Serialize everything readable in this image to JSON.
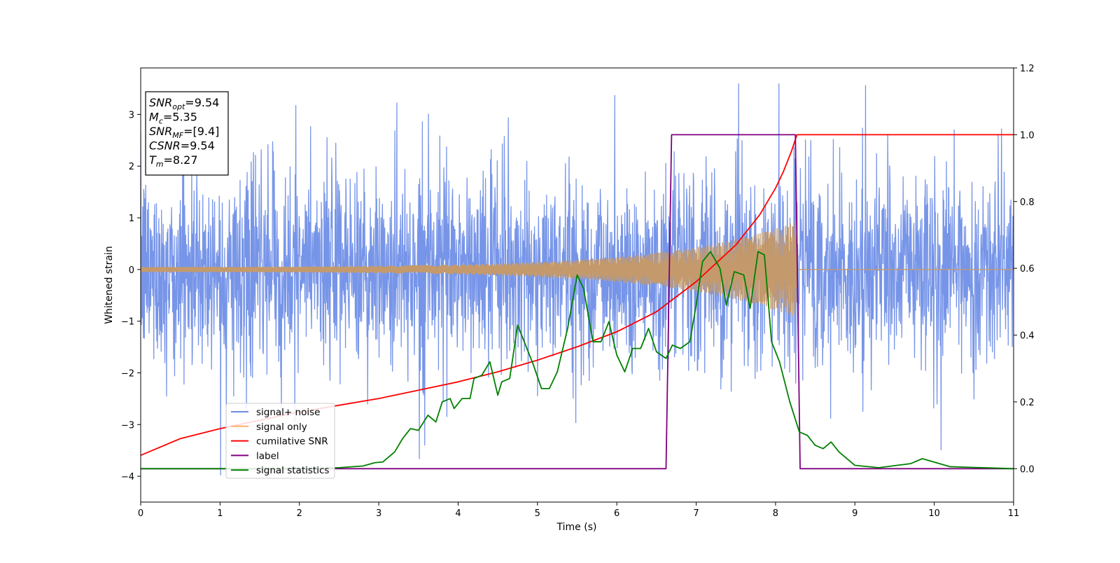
{
  "chart_data": {
    "type": "line",
    "title": "",
    "xlabel": "Time (s)",
    "ylabel": "Whitened strain",
    "xlim": [
      0,
      11
    ],
    "ylim_left": [
      -4.5,
      3.9
    ],
    "ylim_right": [
      -0.1,
      1.2
    ],
    "x_ticks": [
      "0",
      "1",
      "2",
      "3",
      "4",
      "5",
      "6",
      "7",
      "8",
      "9",
      "10",
      "11"
    ],
    "y_ticks_left": [
      "−4",
      "−3",
      "−2",
      "−1",
      "0",
      "1",
      "2",
      "3"
    ],
    "y_ticks_right": [
      "0.0",
      "0.2",
      "0.4",
      "0.6",
      "0.8",
      "1.0",
      "1.2"
    ],
    "colors": {
      "noise": "#6b8ce6",
      "signal": "#c49a6c",
      "cumulative": "#ff0000",
      "label": "#800080",
      "statistics": "#008000"
    },
    "legend": {
      "placement": "lower-left",
      "entries": [
        "signal+ noise",
        "signal only",
        "cumilative SNR",
        "label",
        "signal statistics"
      ]
    },
    "annotation": {
      "lines": [
        {
          "base": "SNR",
          "sub": "opt",
          "value": "=9.54"
        },
        {
          "base": "M",
          "sub": "c",
          "value": "=5.35"
        },
        {
          "base": "SNR",
          "sub": "MF",
          "value": "=[9.4]"
        },
        {
          "base": "CSNR",
          "sub": "",
          "value": "=9.54"
        },
        {
          "base": "T",
          "sub": "m",
          "value": "=8.27"
        }
      ]
    },
    "series": [
      {
        "name": "signal+ noise",
        "axis": "left",
        "description_range": [
          -4.2,
          3.6
        ],
        "envelope": {
          "typical_half_width": 1.6,
          "spikes_max": 3.6,
          "spikes_min": -4.2
        }
      },
      {
        "name": "signal only",
        "axis": "left",
        "chirp": {
          "start": 0,
          "merger": 8.27,
          "amp_start": 0.05,
          "amp_end": 0.75
        }
      },
      {
        "name": "cumilative SNR",
        "axis": "right",
        "x": [
          0,
          0.5,
          1,
          1.5,
          2,
          2.5,
          3,
          3.5,
          4,
          4.5,
          5,
          5.5,
          6,
          6.5,
          7,
          7.5,
          7.8,
          8.0,
          8.1,
          8.2,
          8.27,
          11
        ],
        "y": [
          0.04,
          0.09,
          0.12,
          0.145,
          0.17,
          0.19,
          0.21,
          0.235,
          0.26,
          0.29,
          0.325,
          0.365,
          0.41,
          0.47,
          0.56,
          0.67,
          0.76,
          0.84,
          0.89,
          0.95,
          1.0,
          1.0
        ]
      },
      {
        "name": "label",
        "axis": "right",
        "x": [
          0,
          6.62,
          6.69,
          8.25,
          8.31,
          11
        ],
        "y": [
          0.0,
          0.0,
          1.0,
          1.0,
          0.0,
          0.0
        ]
      },
      {
        "name": "signal statistics",
        "axis": "right",
        "x": [
          0,
          0.5,
          1,
          1.5,
          2,
          2.5,
          2.8,
          2.95,
          3.05,
          3.2,
          3.3,
          3.4,
          3.5,
          3.62,
          3.72,
          3.8,
          3.9,
          3.95,
          4.05,
          4.15,
          4.2,
          4.3,
          4.4,
          4.5,
          4.55,
          4.65,
          4.75,
          4.85,
          4.95,
          5.05,
          5.15,
          5.25,
          5.38,
          5.5,
          5.58,
          5.7,
          5.8,
          5.9,
          6.0,
          6.1,
          6.2,
          6.3,
          6.4,
          6.5,
          6.62,
          6.7,
          6.8,
          6.92,
          7.0,
          7.08,
          7.18,
          7.3,
          7.38,
          7.48,
          7.6,
          7.68,
          7.78,
          7.86,
          7.95,
          8.05,
          8.18,
          8.3,
          8.4,
          8.5,
          8.6,
          8.7,
          8.8,
          9.0,
          9.3,
          9.7,
          9.85,
          10.2,
          11
        ],
        "y": [
          0.0,
          0.0,
          0.0,
          0.0,
          0.001,
          0.003,
          0.008,
          0.018,
          0.02,
          0.05,
          0.09,
          0.12,
          0.115,
          0.16,
          0.14,
          0.2,
          0.21,
          0.18,
          0.21,
          0.21,
          0.27,
          0.28,
          0.32,
          0.22,
          0.26,
          0.27,
          0.43,
          0.37,
          0.31,
          0.24,
          0.24,
          0.29,
          0.42,
          0.58,
          0.54,
          0.38,
          0.38,
          0.44,
          0.34,
          0.29,
          0.36,
          0.36,
          0.42,
          0.35,
          0.33,
          0.37,
          0.36,
          0.38,
          0.49,
          0.62,
          0.65,
          0.6,
          0.49,
          0.59,
          0.58,
          0.48,
          0.65,
          0.64,
          0.38,
          0.32,
          0.2,
          0.11,
          0.1,
          0.07,
          0.06,
          0.08,
          0.05,
          0.01,
          0.003,
          0.015,
          0.03,
          0.006,
          0.0
        ]
      }
    ]
  }
}
